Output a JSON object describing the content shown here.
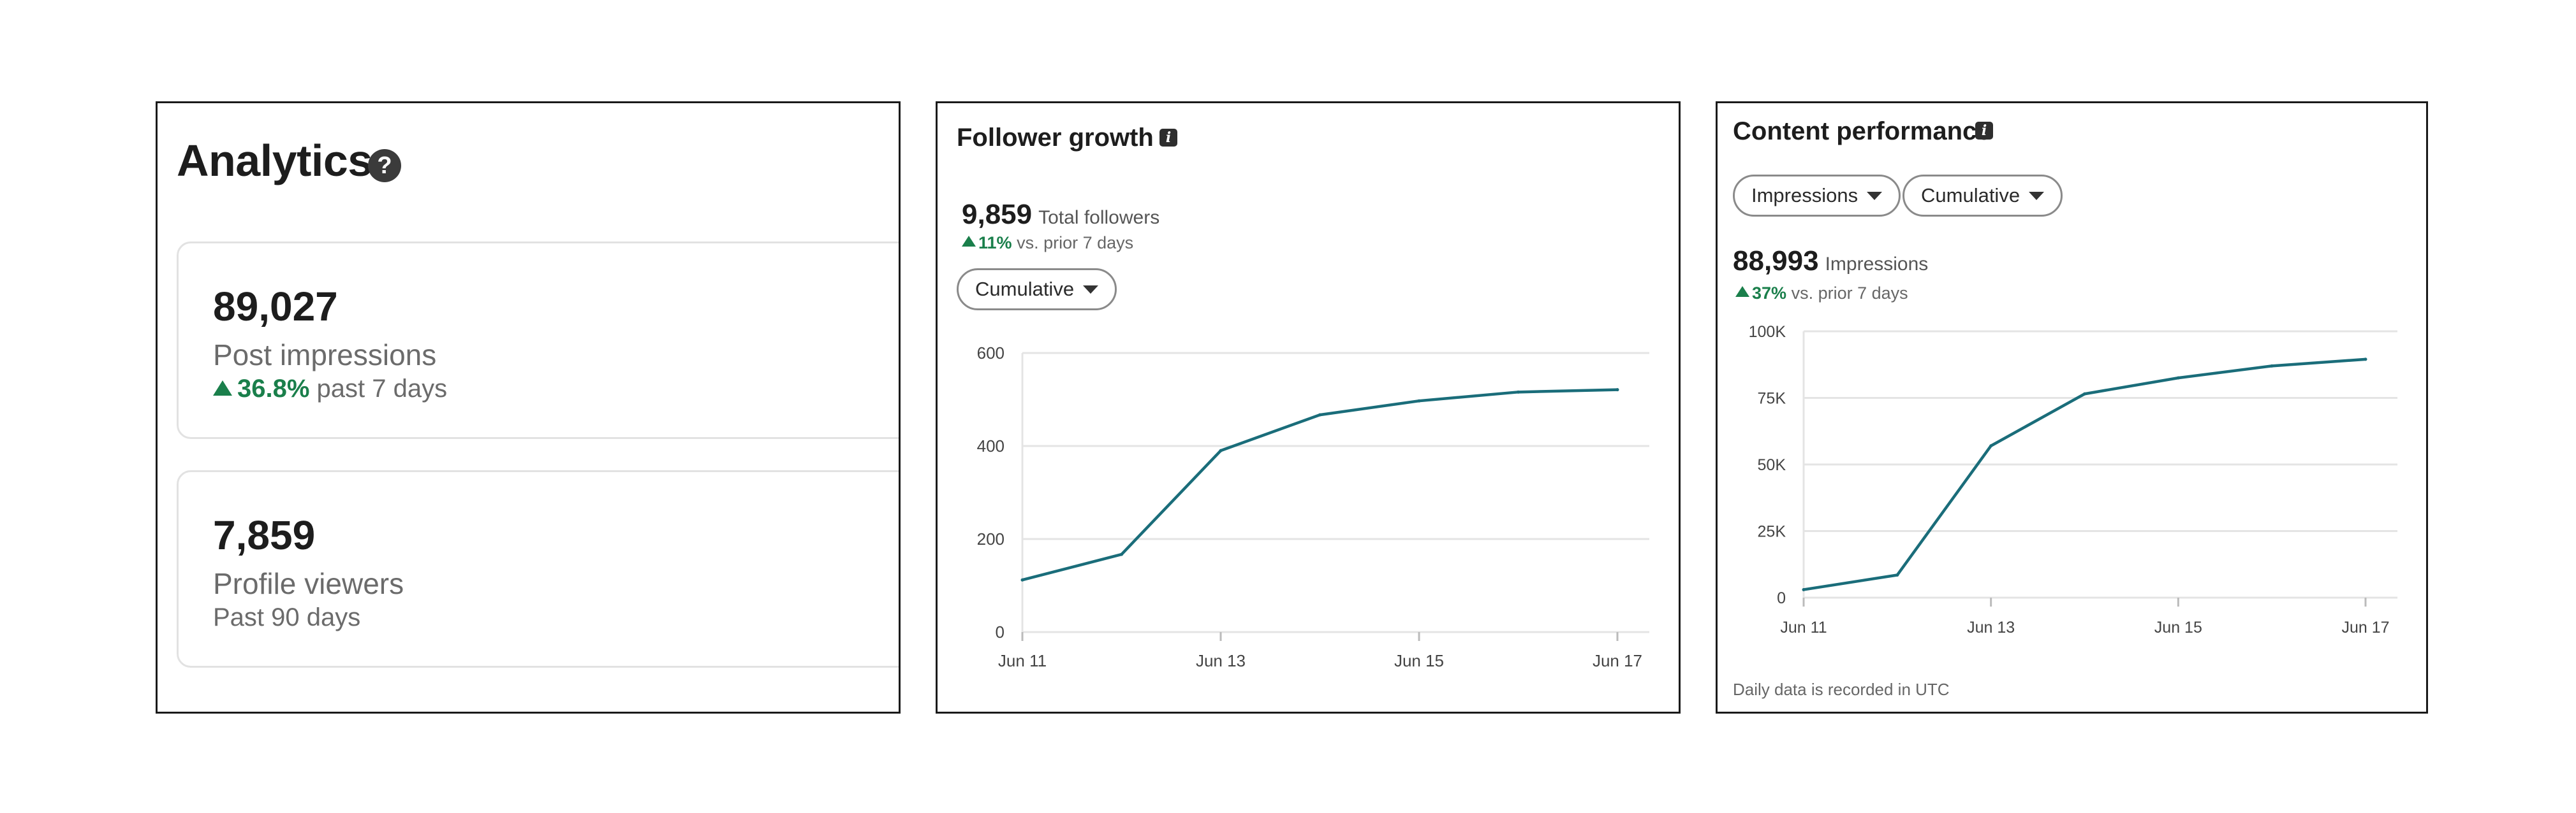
{
  "analytics": {
    "title": "Analytics",
    "help_icon": "question-circle-icon",
    "impressions": {
      "value": "89,027",
      "label": "Post impressions",
      "delta": "36.8%",
      "period": "past 7 days"
    },
    "viewers": {
      "value": "7,859",
      "label": "Profile viewers",
      "period": "Past 90 days"
    }
  },
  "followers": {
    "title": "Follower growth",
    "info_icon": "info-icon",
    "total": "9,859",
    "total_label": "Total followers",
    "delta": "11%",
    "delta_label": "vs. prior 7 days",
    "dropdown": "Cumulative"
  },
  "content": {
    "title": "Content performance",
    "info_icon": "info-icon",
    "dropdown_metric": "Impressions",
    "dropdown_mode": "Cumulative",
    "total": "88,993",
    "total_label": "Impressions",
    "delta": "37%",
    "delta_label": "vs. prior 7 days",
    "footnote": "Daily data is recorded in UTC"
  },
  "colors": {
    "line": "#1a6d7a",
    "positive": "#1a7f4b",
    "grid": "#e4e4e4"
  },
  "chart_data": [
    {
      "type": "line",
      "title": "Follower growth",
      "x": [
        "Jun 11",
        "Jun 12",
        "Jun 13",
        "Jun 14",
        "Jun 15",
        "Jun 16",
        "Jun 17"
      ],
      "xticks": [
        "Jun 11",
        "Jun 13",
        "Jun 15",
        "Jun 17"
      ],
      "series": [
        {
          "values": [
            112,
            167,
            390,
            467,
            497,
            516,
            521
          ]
        }
      ],
      "yticks": [
        "0",
        "200",
        "400",
        "600"
      ],
      "ylim": [
        0,
        600
      ],
      "grid": true
    },
    {
      "type": "line",
      "title": "Content performance",
      "x": [
        "Jun 11",
        "Jun 12",
        "Jun 13",
        "Jun 14",
        "Jun 15",
        "Jun 16",
        "Jun 17"
      ],
      "xticks": [
        "Jun 11",
        "Jun 13",
        "Jun 15",
        "Jun 17"
      ],
      "series": [
        {
          "values": [
            3000,
            8500,
            57000,
            76500,
            82500,
            87000,
            89500
          ]
        }
      ],
      "yticks": [
        "0",
        "25K",
        "50K",
        "75K",
        "100K"
      ],
      "ylim": [
        0,
        100000
      ],
      "grid": true
    }
  ]
}
